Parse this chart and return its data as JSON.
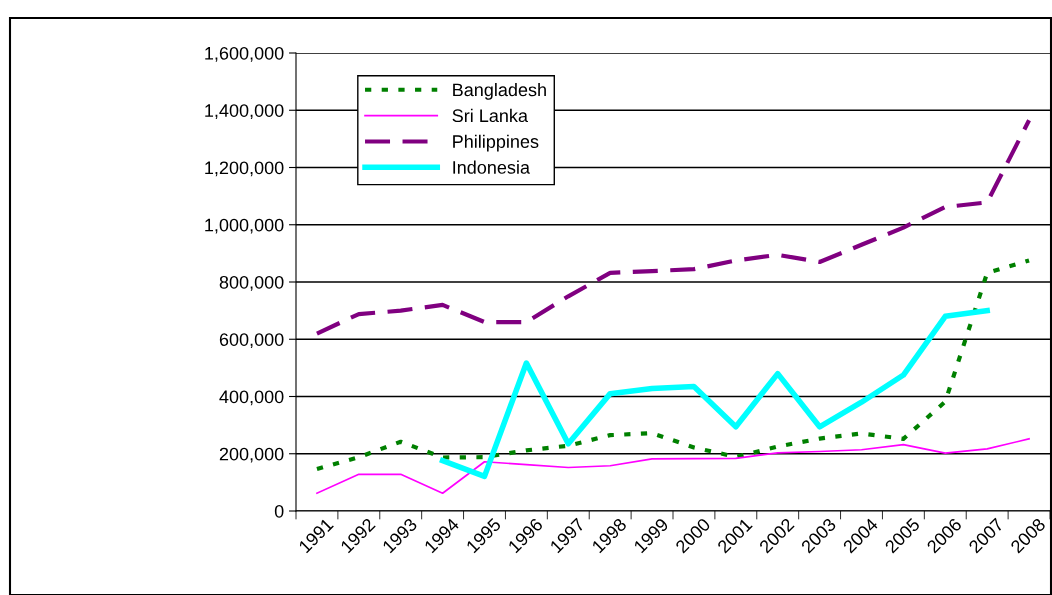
{
  "chart_data": {
    "type": "line",
    "categories": [
      "1991",
      "1992",
      "1993",
      "1994",
      "1995",
      "1996",
      "1997",
      "1998",
      "1999",
      "2000",
      "2001",
      "2002",
      "2003",
      "2004",
      "2005",
      "2006",
      "2007",
      "2008"
    ],
    "series": [
      {
        "name": "Bangladesh",
        "color": "#008000",
        "line_style": "dotted",
        "values": [
          147000,
          188000,
          242000,
          187000,
          188000,
          212000,
          228000,
          265000,
          272000,
          222000,
          189000,
          225000,
          253000,
          271000,
          252000,
          382000,
          832000,
          875000
        ]
      },
      {
        "name": "Sri Lanka",
        "color": "#ff00ff",
        "line_style": "solid",
        "values": [
          62000,
          128000,
          128000,
          62000,
          172000,
          162000,
          152000,
          158000,
          182000,
          183000,
          184000,
          203000,
          208000,
          214000,
          232000,
          202000,
          217000,
          252000
        ]
      },
      {
        "name": "Philippines",
        "color": "#800080",
        "line_style": "dashed",
        "values": [
          620000,
          688000,
          700000,
          720000,
          660000,
          660000,
          750000,
          832000,
          838000,
          845000,
          875000,
          895000,
          870000,
          930000,
          990000,
          1062000,
          1078000,
          1365000
        ]
      },
      {
        "name": "Indonesia",
        "color": "#00ffff",
        "line_style": "solid",
        "values": [
          null,
          null,
          null,
          176000,
          121000,
          517000,
          235000,
          410000,
          428000,
          435000,
          294000,
          480000,
          294000,
          380000,
          475000,
          680000,
          700000,
          null
        ]
      }
    ],
    "ylim": [
      0,
      1600000
    ],
    "yticks": [
      {
        "value": 0,
        "label": "0"
      },
      {
        "value": 200000,
        "label": "200,000"
      },
      {
        "value": 400000,
        "label": "400,000"
      },
      {
        "value": 600000,
        "label": "600,000"
      },
      {
        "value": 800000,
        "label": "800,000"
      },
      {
        "value": 1000000,
        "label": "1,000,000"
      },
      {
        "value": 1200000,
        "label": "1,200,000"
      },
      {
        "value": 1400000,
        "label": "1,400,000"
      },
      {
        "value": 1600000,
        "label": "1,600,000"
      }
    ],
    "grid": "y",
    "legend": "top left",
    "marker": "none"
  }
}
